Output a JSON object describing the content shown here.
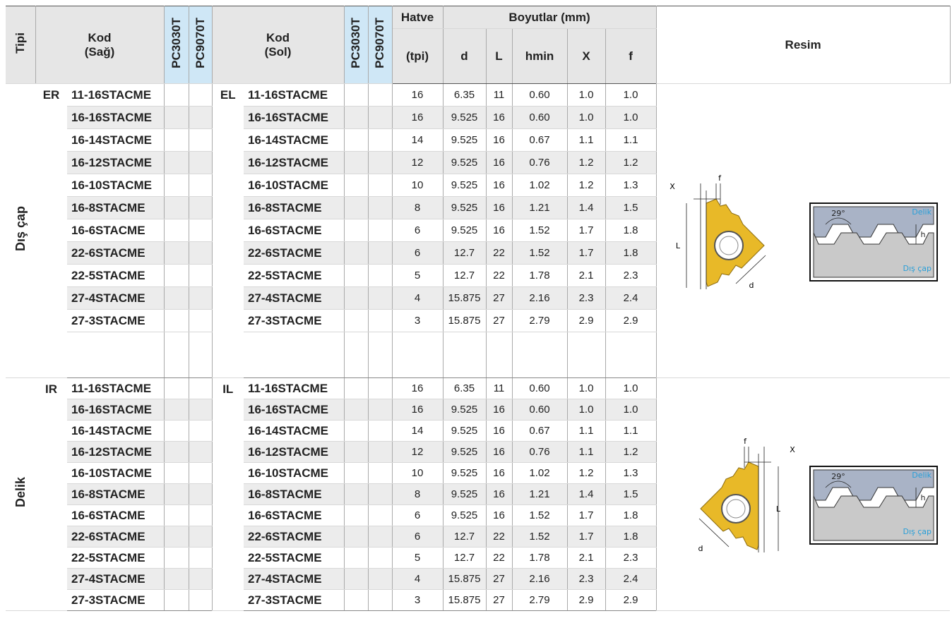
{
  "header": {
    "type": "Tipi",
    "code_right": [
      "Kod",
      "(Sağ)"
    ],
    "grades_right": [
      "PC3030T",
      "PC9070T"
    ],
    "code_left": [
      "Kod",
      "(Sol)"
    ],
    "grades_left": [
      "PC3030T",
      "PC9070T"
    ],
    "pitch": [
      "Hatve",
      "(tpi)"
    ],
    "dimensions": "Boyutlar (mm)",
    "dimension_columns": [
      "d",
      "L",
      "hmin",
      "X",
      "f"
    ],
    "picture": "Resim"
  },
  "groups": [
    {
      "name": "Dış çap",
      "right_prefix": "ER",
      "left_prefix": "EL",
      "rows": [
        [
          "11-16STACME",
          "11-16STACME",
          "16",
          "6.35",
          "11",
          "0.60",
          "1.0",
          "1.0"
        ],
        [
          "16-16STACME",
          "16-16STACME",
          "16",
          "9.525",
          "16",
          "0.60",
          "1.0",
          "1.0"
        ],
        [
          "16-14STACME",
          "16-14STACME",
          "14",
          "9.525",
          "16",
          "0.67",
          "1.1",
          "1.1"
        ],
        [
          "16-12STACME",
          "16-12STACME",
          "12",
          "9.525",
          "16",
          "0.76",
          "1.2",
          "1.2"
        ],
        [
          "16-10STACME",
          "16-10STACME",
          "10",
          "9.525",
          "16",
          "1.02",
          "1.2",
          "1.3"
        ],
        [
          "16-8STACME",
          "16-8STACME",
          "8",
          "9.525",
          "16",
          "1.21",
          "1.4",
          "1.5"
        ],
        [
          "16-6STACME",
          "16-6STACME",
          "6",
          "9.525",
          "16",
          "1.52",
          "1.7",
          "1.8"
        ],
        [
          "22-6STACME",
          "22-6STACME",
          "6",
          "12.7",
          "22",
          "1.52",
          "1.7",
          "1.8"
        ],
        [
          "22-5STACME",
          "22-5STACME",
          "5",
          "12.7",
          "22",
          "1.78",
          "2.1",
          "2.3"
        ],
        [
          "27-4STACME",
          "27-4STACME",
          "4",
          "15.875",
          "27",
          "2.16",
          "2.3",
          "2.4"
        ],
        [
          "27-3STACME",
          "27-3STACME",
          "3",
          "15.875",
          "27",
          "2.79",
          "2.9",
          "2.9"
        ]
      ],
      "figure": {
        "f": "f",
        "x": "X",
        "l": "L",
        "d": "d",
        "angle": "29°",
        "hole": "Delik",
        "outer": "Dış çap",
        "h": "h"
      }
    },
    {
      "name": "Delik",
      "right_prefix": "IR",
      "left_prefix": "IL",
      "rows": [
        [
          "11-16STACME",
          "11-16STACME",
          "16",
          "6.35",
          "11",
          "0.60",
          "1.0",
          "1.0"
        ],
        [
          "16-16STACME",
          "16-16STACME",
          "16",
          "9.525",
          "16",
          "0.60",
          "1.0",
          "1.0"
        ],
        [
          "16-14STACME",
          "16-14STACME",
          "14",
          "9.525",
          "16",
          "0.67",
          "1.1",
          "1.1"
        ],
        [
          "16-12STACME",
          "16-12STACME",
          "12",
          "9.525",
          "16",
          "0.76",
          "1.1",
          "1.2"
        ],
        [
          "16-10STACME",
          "16-10STACME",
          "10",
          "9.525",
          "16",
          "1.02",
          "1.2",
          "1.3"
        ],
        [
          "16-8STACME",
          "16-8STACME",
          "8",
          "9.525",
          "16",
          "1.21",
          "1.4",
          "1.5"
        ],
        [
          "16-6STACME",
          "16-6STACME",
          "6",
          "9.525",
          "16",
          "1.52",
          "1.7",
          "1.8"
        ],
        [
          "22-6STACME",
          "22-6STACME",
          "6",
          "12.7",
          "22",
          "1.52",
          "1.7",
          "1.8"
        ],
        [
          "22-5STACME",
          "22-5STACME",
          "5",
          "12.7",
          "22",
          "1.78",
          "2.1",
          "2.3"
        ],
        [
          "27-4STACME",
          "27-4STACME",
          "4",
          "15.875",
          "27",
          "2.16",
          "2.3",
          "2.4"
        ],
        [
          "27-3STACME",
          "27-3STACME",
          "3",
          "15.875",
          "27",
          "2.79",
          "2.9",
          "2.9"
        ]
      ],
      "figure": {
        "f": "f",
        "x": "X",
        "l": "L",
        "d": "d",
        "angle": "29°",
        "hole": "Delik",
        "outer": "Dış çap",
        "h": "h"
      }
    }
  ]
}
